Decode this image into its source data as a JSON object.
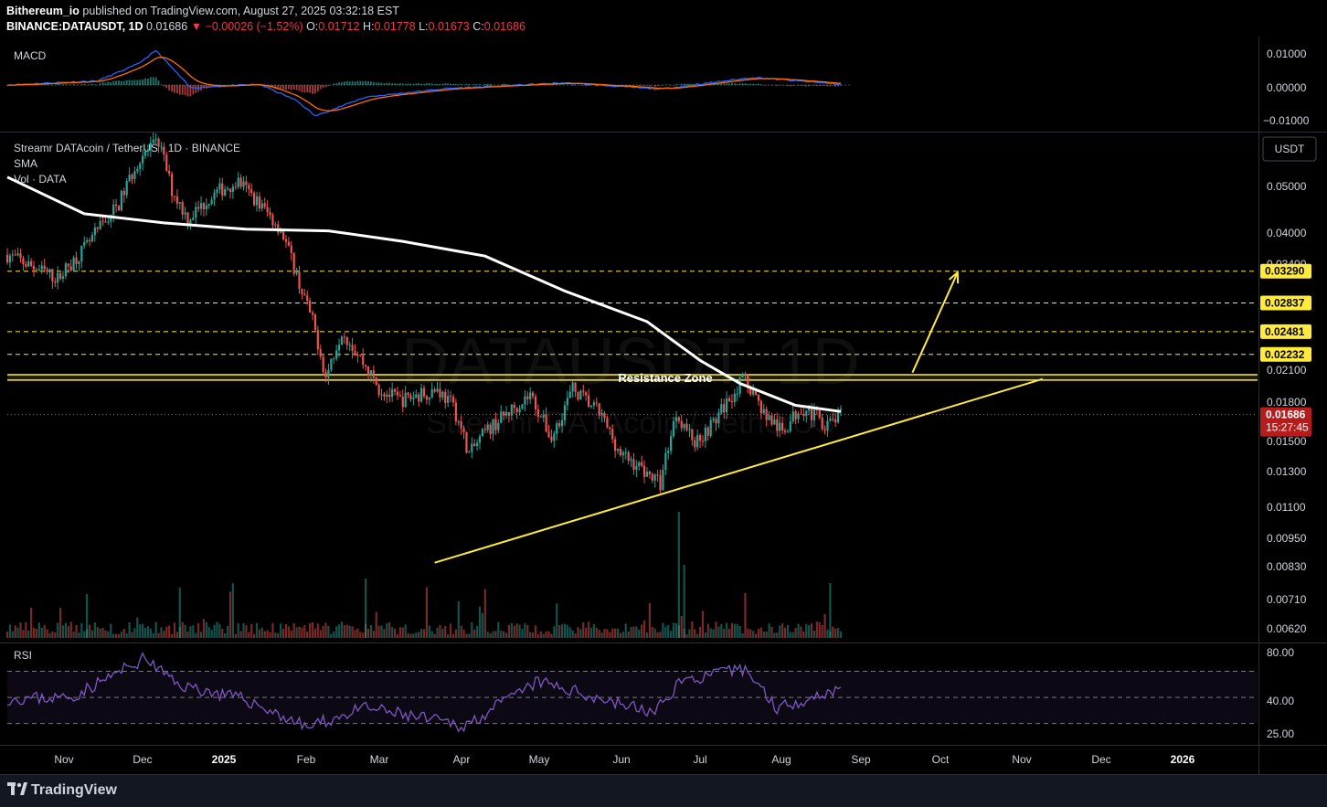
{
  "header": {
    "publisher": "Bithereum_io",
    "published_text": "published on TradingView.com, August 27, 2025 03:32:18 EST",
    "symbol": "BINANCE:DATAUSDT, 1D",
    "last": "0.01686",
    "change": "▼ −0.00026 (−1.52%)",
    "o_label": "O:",
    "o": "0.01712",
    "h_label": "H:",
    "h": "0.01778",
    "l_label": "L:",
    "l": "0.01673",
    "c_label": "C:",
    "c": "0.01686"
  },
  "panes": {
    "macd": {
      "label": "MACD",
      "ticks": [
        "0.01000",
        "0.00000",
        "−0.01000"
      ]
    },
    "main": {
      "title": "Streamr DATAcoin / TetherUS · 1D · BINANCE",
      "sma_label": "SMA",
      "vol_label": "Vol · DATA",
      "currency_button": "USDT",
      "watermark_big": "DATAUSDT, 1D",
      "watermark_small": "Streamr DATAcoin / TetherUS",
      "resistance_label": "Resistance Zone",
      "price_ticks": [
        "0.05000",
        "0.04000",
        "0.03400",
        "0.02100",
        "0.01800",
        "0.01500",
        "0.01300",
        "0.01100",
        "0.00950",
        "0.00830",
        "0.00710",
        "0.00620"
      ],
      "target_levels": [
        "0.03290",
        "0.02837",
        "0.02481",
        "0.02232"
      ],
      "current_price": "0.01686",
      "countdown": "15:27:45"
    },
    "rsi": {
      "label": "RSI",
      "ticks": [
        "80.00",
        "40.00",
        "25.00"
      ]
    }
  },
  "time_axis": [
    "Nov",
    "Dec",
    "2025",
    "Feb",
    "Mar",
    "Apr",
    "May",
    "Jun",
    "Jul",
    "Aug",
    "Sep",
    "Oct",
    "Nov",
    "Dec",
    "2026"
  ],
  "footer": {
    "brand": "TradingView"
  },
  "colors": {
    "up": "#26a69a",
    "down": "#ef5350",
    "sma": "#ffffff",
    "levels": "#ffeb3b",
    "macd": "#2962ff",
    "signal": "#ff6d00",
    "rsi": "#7e57c2",
    "price_label": "#b71c1c"
  },
  "chart_data": {
    "type": "candlestick",
    "symbol": "DATAUSDT",
    "interval": "1D",
    "scale": "log",
    "x_range": [
      "2024-10-17",
      "2026-01-31"
    ],
    "y_range": [
      0.0059,
      0.062
    ],
    "anchors": [
      {
        "date": "2024-10-17",
        "close": 0.0355
      },
      {
        "date": "2024-10-27",
        "close": 0.0335
      },
      {
        "date": "2024-11-05",
        "close": 0.0318
      },
      {
        "date": "2024-11-16",
        "close": 0.037
      },
      {
        "date": "2024-11-28",
        "close": 0.045
      },
      {
        "date": "2024-12-06",
        "close": 0.056
      },
      {
        "date": "2024-12-13",
        "close": 0.06
      },
      {
        "date": "2024-12-18",
        "close": 0.048
      },
      {
        "date": "2024-12-24",
        "close": 0.042
      },
      {
        "date": "2025-01-05",
        "close": 0.048
      },
      {
        "date": "2025-01-12",
        "close": 0.05
      },
      {
        "date": "2025-01-20",
        "close": 0.045
      },
      {
        "date": "2025-01-28",
        "close": 0.04
      },
      {
        "date": "2025-02-04",
        "close": 0.031
      },
      {
        "date": "2025-02-09",
        "close": 0.026
      },
      {
        "date": "2025-02-14",
        "close": 0.02
      },
      {
        "date": "2025-02-20",
        "close": 0.025
      },
      {
        "date": "2025-02-28",
        "close": 0.0215
      },
      {
        "date": "2025-03-06",
        "close": 0.019
      },
      {
        "date": "2025-03-14",
        "close": 0.018
      },
      {
        "date": "2025-03-28",
        "close": 0.019
      },
      {
        "date": "2025-04-03",
        "close": 0.0175
      },
      {
        "date": "2025-04-09",
        "close": 0.014
      },
      {
        "date": "2025-04-15",
        "close": 0.0155
      },
      {
        "date": "2025-05-02",
        "close": 0.0185
      },
      {
        "date": "2025-05-10",
        "close": 0.015
      },
      {
        "date": "2025-05-18",
        "close": 0.019
      },
      {
        "date": "2025-05-28",
        "close": 0.017
      },
      {
        "date": "2025-06-05",
        "close": 0.014
      },
      {
        "date": "2025-06-14",
        "close": 0.013
      },
      {
        "date": "2025-06-20",
        "close": 0.0122
      },
      {
        "date": "2025-06-26",
        "close": 0.017
      },
      {
        "date": "2025-07-03",
        "close": 0.0148
      },
      {
        "date": "2025-07-10",
        "close": 0.0162
      },
      {
        "date": "2025-07-17",
        "close": 0.0185
      },
      {
        "date": "2025-07-22",
        "close": 0.02
      },
      {
        "date": "2025-07-29",
        "close": 0.017
      },
      {
        "date": "2025-08-05",
        "close": 0.0155
      },
      {
        "date": "2025-08-12",
        "close": 0.0175
      },
      {
        "date": "2025-08-17",
        "close": 0.0168
      },
      {
        "date": "2025-08-22",
        "close": 0.016
      },
      {
        "date": "2025-08-27",
        "close": 0.01686
      }
    ],
    "sma": [
      {
        "date": "2024-10-17",
        "value": 0.051
      },
      {
        "date": "2024-11-15",
        "value": 0.043
      },
      {
        "date": "2024-12-15",
        "value": 0.0412
      },
      {
        "date": "2025-01-15",
        "value": 0.04
      },
      {
        "date": "2025-02-15",
        "value": 0.0397
      },
      {
        "date": "2025-03-15",
        "value": 0.0378
      },
      {
        "date": "2025-04-15",
        "value": 0.0353
      },
      {
        "date": "2025-05-15",
        "value": 0.03
      },
      {
        "date": "2025-06-15",
        "value": 0.026
      },
      {
        "date": "2025-07-05",
        "value": 0.0217
      },
      {
        "date": "2025-07-20",
        "value": 0.0195
      },
      {
        "date": "2025-08-10",
        "value": 0.0176
      },
      {
        "date": "2025-08-27",
        "value": 0.0171
      }
    ],
    "resistance_zone": [
      0.0198,
      0.0203
    ],
    "support_trendline": [
      {
        "date": "2025-03-27",
        "value": 0.00845
      },
      {
        "date": "2025-11-11",
        "value": 0.0199
      }
    ],
    "target_arrow": [
      {
        "date": "2025-09-23",
        "value": 0.0205
      },
      {
        "date": "2025-10-10",
        "value": 0.0327
      }
    ],
    "target_levels": [
      0.0329,
      0.02837,
      0.02481,
      0.02232
    ],
    "macd": {
      "ylim": [
        -0.013,
        0.013
      ],
      "macd_line": [
        {
          "date": "2024-10-17",
          "value": 0.0
        },
        {
          "date": "2024-11-20",
          "value": 0.0012
        },
        {
          "date": "2024-12-05",
          "value": 0.006
        },
        {
          "date": "2024-12-12",
          "value": 0.01
        },
        {
          "date": "2024-12-25",
          "value": -0.0008
        },
        {
          "date": "2025-01-20",
          "value": 0.0002
        },
        {
          "date": "2025-02-03",
          "value": -0.0045
        },
        {
          "date": "2025-02-10",
          "value": -0.009
        },
        {
          "date": "2025-03-01",
          "value": -0.0035
        },
        {
          "date": "2025-04-01",
          "value": -0.001
        },
        {
          "date": "2025-05-15",
          "value": 0.0006
        },
        {
          "date": "2025-06-20",
          "value": -0.0012
        },
        {
          "date": "2025-07-25",
          "value": 0.0022
        },
        {
          "date": "2025-08-27",
          "value": 0.0002
        }
      ]
    },
    "rsi": {
      "ylim": [
        15,
        90
      ],
      "bands": [
        30,
        50,
        70
      ],
      "line": [
        {
          "date": "2024-10-17",
          "value": 49
        },
        {
          "date": "2024-11-10",
          "value": 50
        },
        {
          "date": "2024-12-08",
          "value": 80
        },
        {
          "date": "2024-12-20",
          "value": 60
        },
        {
          "date": "2025-01-15",
          "value": 48
        },
        {
          "date": "2025-02-07",
          "value": 27
        },
        {
          "date": "2025-03-01",
          "value": 42
        },
        {
          "date": "2025-04-07",
          "value": 28
        },
        {
          "date": "2025-05-05",
          "value": 62
        },
        {
          "date": "2025-06-18",
          "value": 38
        },
        {
          "date": "2025-06-27",
          "value": 62
        },
        {
          "date": "2025-07-22",
          "value": 72
        },
        {
          "date": "2025-08-03",
          "value": 42
        },
        {
          "date": "2025-08-27",
          "value": 57
        }
      ]
    }
  }
}
